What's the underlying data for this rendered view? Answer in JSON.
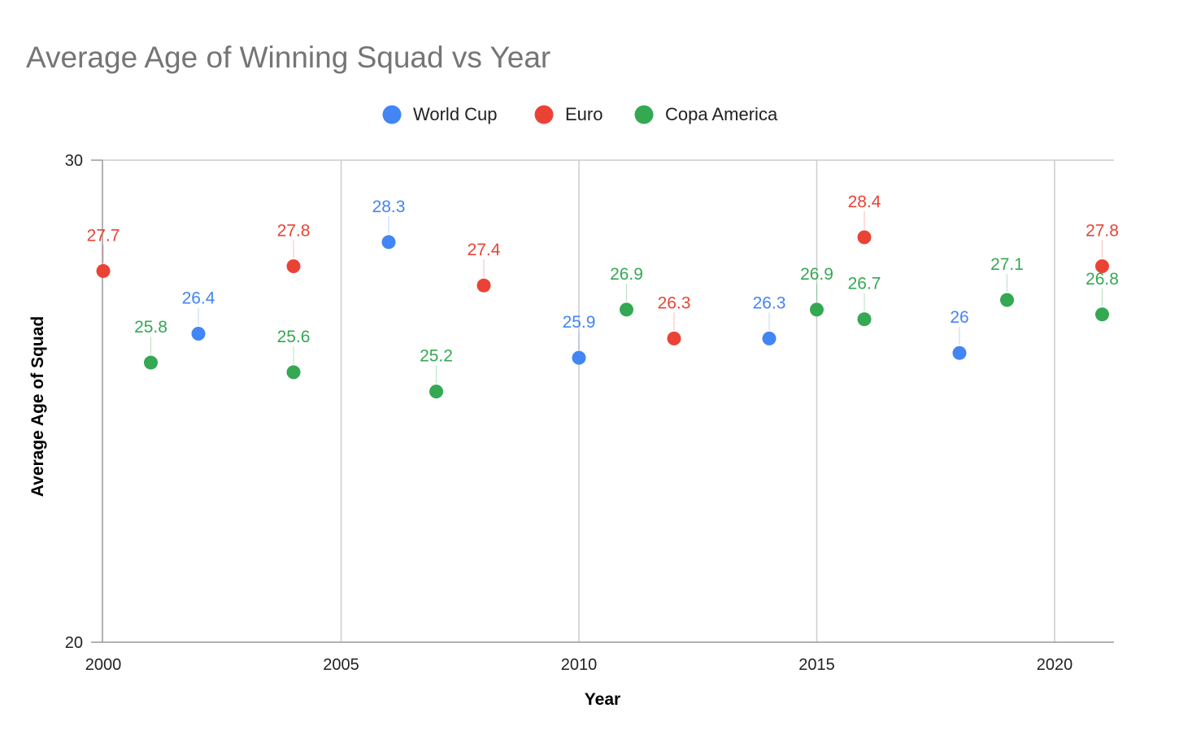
{
  "chart_data": {
    "type": "scatter",
    "title": "Average Age of Winning Squad vs Year",
    "xlabel": "Year",
    "ylabel": "Average Age of Squad",
    "xlim": [
      2000,
      2021.25
    ],
    "ylim": [
      20,
      30
    ],
    "x_ticks": [
      2000,
      2005,
      2010,
      2015,
      2020
    ],
    "y_ticks": [
      20,
      30
    ],
    "grid": "vertical",
    "legend_position": "top",
    "series": [
      {
        "name": "World Cup",
        "color": "#4285f4",
        "points": [
          {
            "x": 2002,
            "y": 26.4,
            "label": "26.4"
          },
          {
            "x": 2006,
            "y": 28.3,
            "label": "28.3"
          },
          {
            "x": 2010,
            "y": 25.9,
            "label": "25.9"
          },
          {
            "x": 2014,
            "y": 26.3,
            "label": "26.3"
          },
          {
            "x": 2018,
            "y": 26,
            "label": "26"
          }
        ]
      },
      {
        "name": "Euro",
        "color": "#ea4335",
        "points": [
          {
            "x": 2000,
            "y": 27.7,
            "label": "27.7"
          },
          {
            "x": 2004,
            "y": 27.8,
            "label": "27.8"
          },
          {
            "x": 2008,
            "y": 27.4,
            "label": "27.4"
          },
          {
            "x": 2012,
            "y": 26.3,
            "label": "26.3"
          },
          {
            "x": 2016,
            "y": 28.4,
            "label": "28.4"
          },
          {
            "x": 2021,
            "y": 27.8,
            "label": "27.8"
          }
        ]
      },
      {
        "name": "Copa America",
        "color": "#34a853",
        "points": [
          {
            "x": 2001,
            "y": 25.8,
            "label": "25.8"
          },
          {
            "x": 2004,
            "y": 25.6,
            "label": "25.6"
          },
          {
            "x": 2007,
            "y": 25.2,
            "label": "25.2"
          },
          {
            "x": 2011,
            "y": 26.9,
            "label": "26.9"
          },
          {
            "x": 2015,
            "y": 26.9,
            "label": "26.9"
          },
          {
            "x": 2016,
            "y": 26.7,
            "label": "26.7"
          },
          {
            "x": 2019,
            "y": 27.1,
            "label": "27.1"
          },
          {
            "x": 2021,
            "y": 26.8,
            "label": "26.8"
          }
        ]
      }
    ]
  }
}
